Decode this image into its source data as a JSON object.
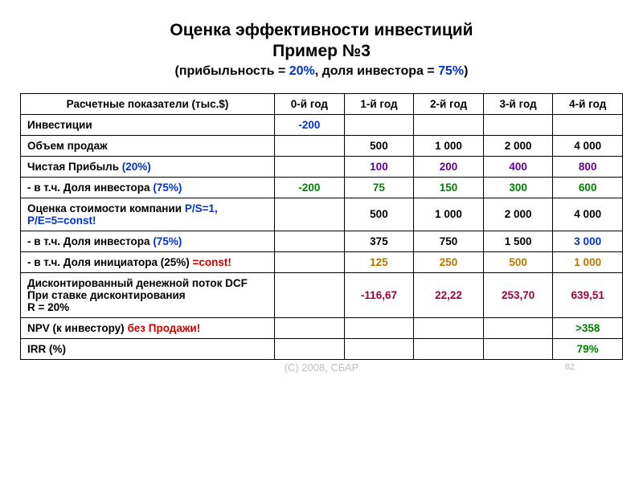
{
  "colors": {
    "blue": "#0033cc",
    "green": "#008000",
    "purple": "#660099",
    "orange": "#b37700",
    "crimson": "#a00040",
    "red": "#cc0000",
    "black": "#000000",
    "gray": "#bfbfbf"
  },
  "title": {
    "line1": "Оценка эффективности инвестиций",
    "line2": "Пример №3"
  },
  "subtitle": {
    "open": "(",
    "t1": "прибыльность = ",
    "v1": "20%",
    "t2": ", доля инвестора = ",
    "v2": "75%",
    "close": ")"
  },
  "headers": {
    "row": "Расчетные показатели  (тыс.$)",
    "y0": "0-й год",
    "y1": "1-й год",
    "y2": "2-й год",
    "y3": "3-й год",
    "y4": "4-й год"
  },
  "rows": {
    "r0": {
      "label": "Инвестиции",
      "c0": "-200",
      "c1": "",
      "c2": "",
      "c3": "",
      "c4": ""
    },
    "r1": {
      "label": "Объем продаж",
      "c0": "",
      "c1": "500",
      "c2": "1 000",
      "c3": "2 000",
      "c4": "4 000"
    },
    "r2": {
      "label_a": "Чистая Прибыль ",
      "label_b": "(20%)",
      "c0": "",
      "c1": "100",
      "c2": "200",
      "c3": "400",
      "c4": "800"
    },
    "r3": {
      "label_a": "- в т.ч. Доля инвестора ",
      "label_b": "(75%)",
      "c0": "-200",
      "c1": "75",
      "c2": "150",
      "c3": "300",
      "c4": "600"
    },
    "r4": {
      "label_a": "Оценка стоимости компании ",
      "label_b": "P/S=1, P/E=5=const!",
      "c0": "",
      "c1": "500",
      "c2": "1 000",
      "c3": "2 000",
      "c4": "4 000"
    },
    "r5": {
      "label_a": "- в т.ч. Доля инвестора ",
      "label_b": "(75%)",
      "c0": "",
      "c1": "375",
      "c2": "750",
      "c3": "1 500",
      "c4": "3 000"
    },
    "r6": {
      "label_a": "- в т.ч. Доля инициатора (25%) ",
      "label_b": "=const!",
      "c0": "",
      "c1": "125",
      "c2": "250",
      "c3": "500",
      "c4": "1 000"
    },
    "r7": {
      "label_a": "Дисконтированный денежной поток DCF",
      "label_b": "При ставке дисконтирования",
      "label_c": "R = 20%",
      "c0": "",
      "c1": "-116,67",
      "c2": "22,22",
      "c3": "253,70",
      "c4": "639,51"
    },
    "r8": {
      "label_a": "NPV (к инвестору) ",
      "label_b": "без Продажи!",
      "c0": "",
      "c1": "",
      "c2": "",
      "c3": "",
      "c4": ">358"
    },
    "r9": {
      "label": "IRR (%)",
      "c0": "",
      "c1": "",
      "c2": "",
      "c3": "",
      "c4": "79%"
    }
  },
  "footer": "(C) 2008, СБАР",
  "page": "82"
}
